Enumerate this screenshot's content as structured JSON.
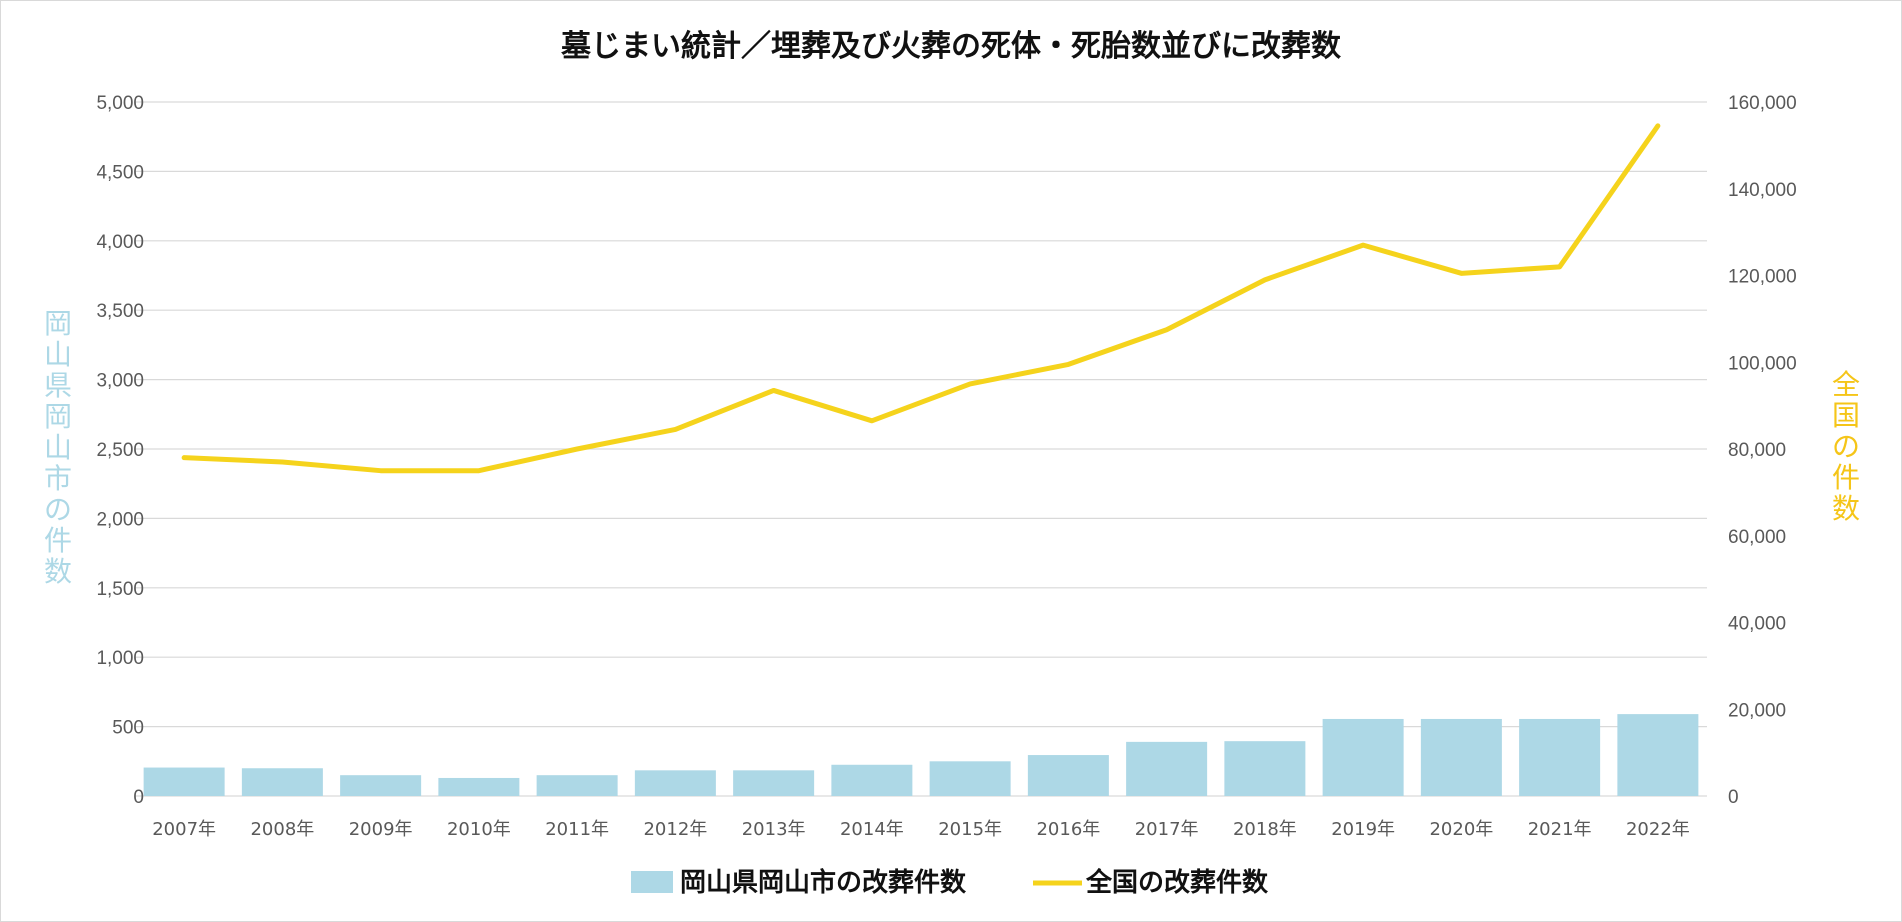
{
  "chart_data": {
    "type": "bar+line",
    "title": "墓じまい統計／埋葬及び火葬の死体・死胎数並びに改葬数",
    "categories": [
      "2007年",
      "2008年",
      "2009年",
      "2010年",
      "2011年",
      "2012年",
      "2013年",
      "2014年",
      "2015年",
      "2016年",
      "2017年",
      "2018年",
      "2019年",
      "2020年",
      "2021年",
      "2022年"
    ],
    "series": [
      {
        "name": "岡山県岡山市の改葬件数",
        "type": "bar",
        "axis": "left",
        "color": "#add8e6",
        "values": [
          205,
          200,
          150,
          130,
          150,
          185,
          185,
          225,
          250,
          295,
          390,
          395,
          555,
          555,
          555,
          590
        ]
      },
      {
        "name": "全国の改葬件数",
        "type": "line",
        "axis": "right",
        "color": "#f5d31c",
        "values": [
          78000,
          77000,
          75000,
          75000,
          80000,
          84500,
          93500,
          86500,
          95000,
          99500,
          107500,
          119000,
          127000,
          120500,
          122000,
          154500
        ]
      }
    ],
    "ylabel_left": "岡山県岡山市の件数",
    "ylabel_right": "全国の件数",
    "ylim_left": [
      0,
      5000
    ],
    "ylim_right": [
      0,
      160000
    ],
    "yticks_left": [
      "0",
      "500",
      "1,000",
      "1,500",
      "2,000",
      "2,500",
      "3,000",
      "3,500",
      "4,000",
      "4,500",
      "5,000"
    ],
    "yticks_right": [
      "0",
      "20,000",
      "40,000",
      "60,000",
      "80,000",
      "100,000",
      "120,000",
      "140,000",
      "160,000"
    ],
    "grid": true,
    "legend_position": "bottom"
  }
}
